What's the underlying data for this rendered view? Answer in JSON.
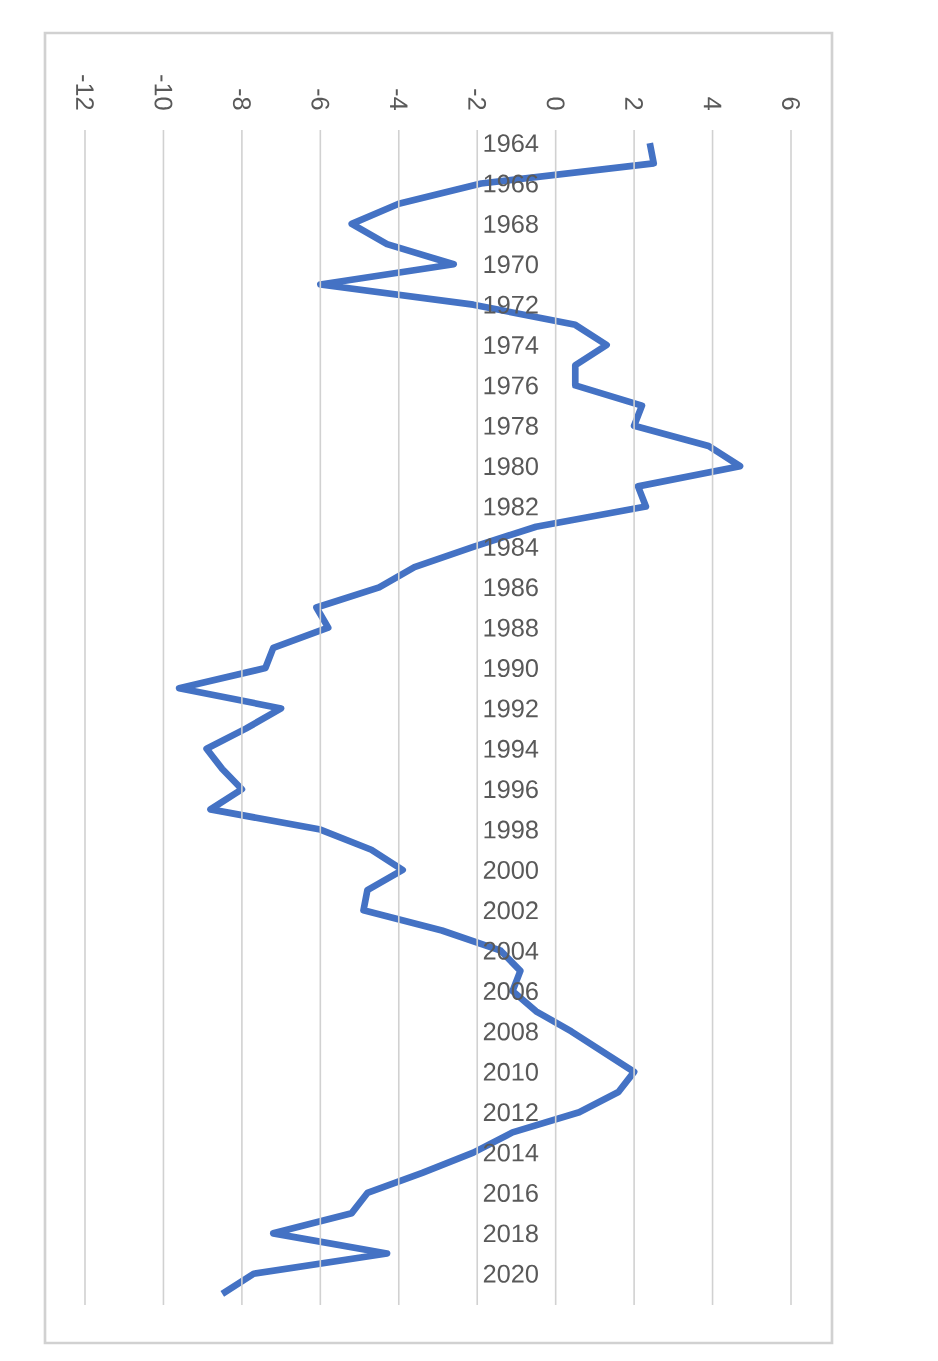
{
  "chart_data": {
    "type": "line",
    "orientation": "horizontal",
    "categories": [
      "1964",
      null,
      "1966",
      null,
      "1968",
      null,
      "1970",
      null,
      "1972",
      null,
      "1974",
      null,
      "1976",
      null,
      "1978",
      null,
      "1980",
      null,
      "1982",
      null,
      "1984",
      null,
      "1986",
      null,
      "1988",
      null,
      "1990",
      null,
      "1992",
      null,
      "1994",
      null,
      "1996",
      null,
      "1998",
      null,
      "2000",
      null,
      "2002",
      null,
      "2004",
      null,
      "2006",
      null,
      "2008",
      null,
      "2010",
      null,
      "2012",
      null,
      "2014",
      null,
      "2016",
      null,
      "2018",
      null,
      "2020",
      null
    ],
    "values": [
      2.4,
      2.5,
      -1.9,
      -4.0,
      -5.2,
      -4.3,
      -2.6,
      -6.0,
      -2.1,
      0.5,
      1.3,
      0.5,
      0.5,
      2.2,
      2.0,
      3.9,
      4.7,
      2.1,
      2.3,
      -0.5,
      -2.1,
      -3.6,
      -4.5,
      -6.1,
      -5.8,
      -7.2,
      -7.4,
      -9.6,
      -7.0,
      -7.9,
      -8.9,
      -8.5,
      -8.0,
      -8.8,
      -6.0,
      -4.7,
      -3.9,
      -4.8,
      -4.9,
      -2.9,
      -1.4,
      -0.9,
      -1.1,
      -0.5,
      0.4,
      1.2,
      2.0,
      1.6,
      0.6,
      -1.1,
      -2.1,
      -3.4,
      -4.8,
      -5.2,
      -7.2,
      -4.3,
      -7.7,
      -8.5
    ],
    "color": "#4472c4",
    "xlim": [
      -12,
      6
    ],
    "xticks": [
      -12,
      -10,
      -8,
      -6,
      -4,
      -2,
      0,
      2,
      4,
      6
    ],
    "grid": "x"
  }
}
